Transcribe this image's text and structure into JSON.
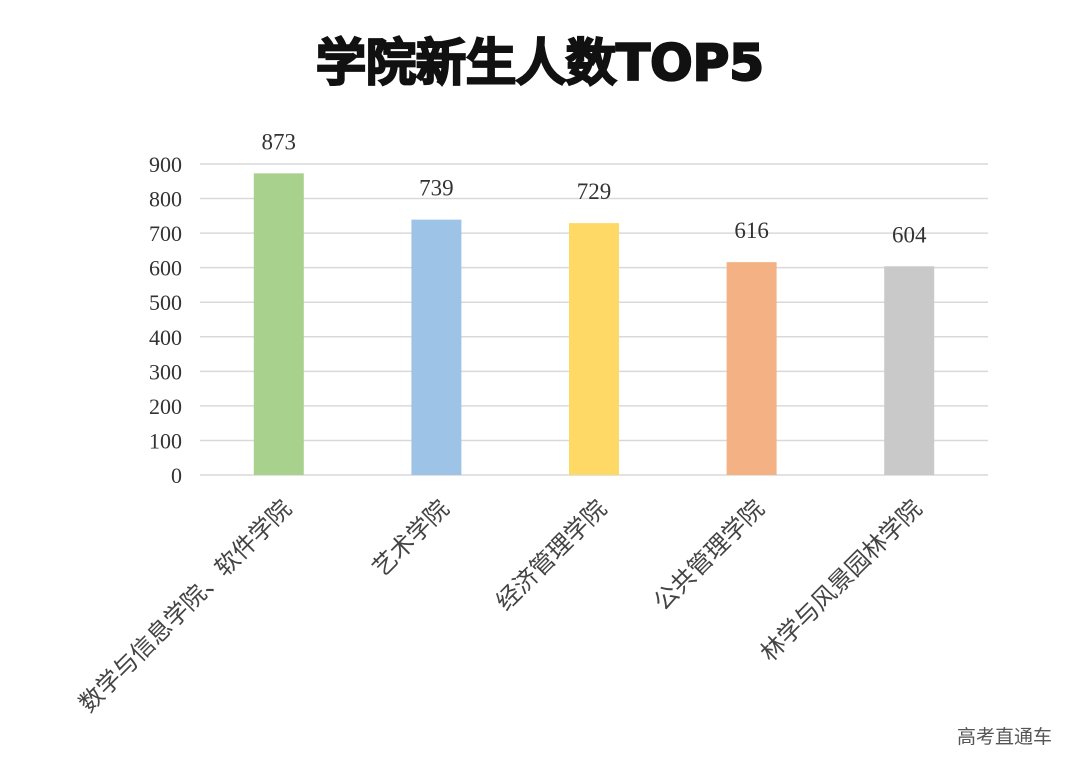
{
  "chart_data": {
    "type": "bar",
    "title": "学院新生人数TOP5",
    "categories": [
      "数学与信息学院、软件学院",
      "艺术学院",
      "经济管理学院",
      "公共管理学院",
      "林学与风景园林学院"
    ],
    "values": [
      873,
      739,
      729,
      616,
      604
    ],
    "colors": [
      "#a9d18e",
      "#9dc3e6",
      "#ffd966",
      "#f4b183",
      "#c9c9c9"
    ],
    "ylim": [
      0,
      900
    ],
    "yticks": [
      0,
      100,
      200,
      300,
      400,
      500,
      600,
      700,
      800,
      900
    ],
    "grid": true,
    "legend": "none"
  },
  "watermark": "高考直通车"
}
